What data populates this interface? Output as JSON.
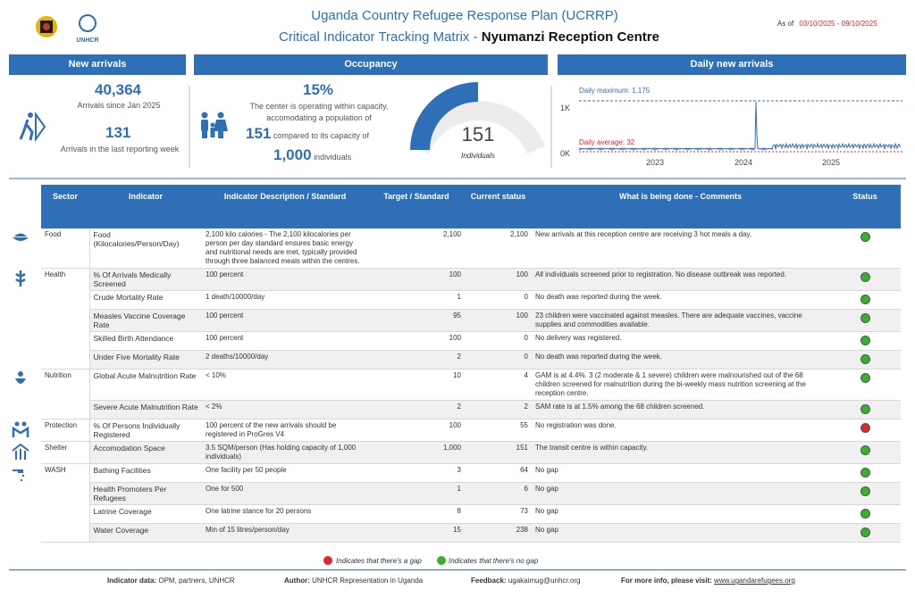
{
  "header": {
    "title_line1": "Uganda Country Refugee Response Plan (UCRRP)",
    "title_line2_prefix": "Critical Indicator Tracking Matrix - ",
    "site_name": "Nyumanzi Reception Centre",
    "as_of_label": "As of",
    "date_range": "03/10/2025 - 09/10/2025",
    "logo_text": "UNHCR"
  },
  "panels": {
    "new_arrivals": {
      "title": "New arrivals",
      "total": "40,364",
      "total_label": "Arrivals since Jan 2025",
      "recent": "131",
      "recent_label": "Arrivals in the last reporting week"
    },
    "occupancy": {
      "title": "Occupancy",
      "percent": "15%",
      "text": "The center is operating within capacity, accomodating a population of",
      "current": "151",
      "compared": "compared to its capacity of",
      "capacity": "1,000",
      "individuals": "individuals",
      "gauge_value": "151",
      "gauge_label": "Individuals"
    },
    "daily": {
      "title": "Daily new arrivals",
      "max_label": "Daily maximum: 1,175",
      "avg_label": "Daily average: 32",
      "y_top": "1K",
      "y_bottom": "0K",
      "years": [
        "2023",
        "2024",
        "2025"
      ]
    }
  },
  "table": {
    "columns": [
      "Sector",
      "Indicator",
      "Indicator Description / Standard",
      "Target / Standard",
      "Current status",
      "What is being done - Comments",
      "Status"
    ],
    "rows": [
      {
        "sector": "Food",
        "indicator": "Food (Kilocalories/Person/Day)",
        "description": "2,100 kilo calories - The 2,100 kilocalories per person per day standard ensures basic energy and nutritional needs are met, typically provided through three balanced meals within the centres.",
        "target": "2,100",
        "current": "2,100",
        "comment": "New arrivals at this reception centre are receiving 3 hot meals a day.",
        "status": "#36b12c"
      },
      {
        "sector": "Health",
        "indicator": "% Of Arrivals Medically Screened",
        "description": "100 percent",
        "target": "100",
        "current": "100",
        "comment": "All individuals screened prior to registration. No disease outbreak was reported.",
        "status": "#36b12c"
      },
      {
        "indicator": "Crude Mortality Rate",
        "description": "1 death/10000/day",
        "target": "1",
        "current": "0",
        "comment": "No death was reported during the week.",
        "status": "#36b12c"
      },
      {
        "indicator": "Measles Vaccine Coverage Rate",
        "description": "100 percent",
        "target": "95",
        "current": "100",
        "comment": "23 children were vaccinated against measles. There are adequate vaccines, vaccine supplies and commodities available.",
        "status": "#36b12c"
      },
      {
        "indicator": "Skilled Birth Attendance",
        "description": "100 percent",
        "target": "100",
        "current": "0",
        "comment": "No delivery was registered.",
        "status": "#36b12c"
      },
      {
        "indicator": "Under Five Mortality Rate",
        "description": "2 deaths/10000/day",
        "target": "2",
        "current": "0",
        "comment": "No death was reported during the week.",
        "status": "#36b12c"
      },
      {
        "sector": "Nutrition",
        "indicator": "Global Acute Malnutrition Rate",
        "description": "< 10%",
        "target": "10",
        "current": "4",
        "comment": "GAM is at 4.4%. 3 (2 moderate & 1 severe) children were malnourished out of the 68 children screened for malnutrition during the bi-weekly mass nutrition screening at the reception centre.",
        "status": "#36b12c"
      },
      {
        "indicator": "Severe Acute Malnutrition Rate",
        "description": "< 2%",
        "target": "2",
        "current": "2",
        "comment": "SAM rate is at 1.5% among the 68 children screened.",
        "status": "#36b12c"
      },
      {
        "sector": "Protection",
        "indicator": "% Of Persons Individually Registered",
        "description": "100 percent of the new arrivals should be registered in ProGres V4",
        "target": "100",
        "current": "55",
        "comment": "No registration was done.",
        "status": "#e0252b"
      },
      {
        "sector": "Shelter",
        "indicator": "Accomodation Space",
        "description": "3.5 SQM/person (Has holding capacity of 1,000 individuals)",
        "target": "1,000",
        "current": "151",
        "comment": "The transit centre is within capacity.",
        "status": "#36b12c"
      },
      {
        "sector": "WASH",
        "indicator": "Bathing Facilities",
        "description": "One facility per 50 people",
        "target": "3",
        "current": "64",
        "comment": "No gap",
        "status": "#36b12c"
      },
      {
        "indicator": "Health Promoters Per Refugees",
        "description": "One for 500",
        "target": "1",
        "current": "6",
        "comment": "No gap",
        "status": "#36b12c"
      },
      {
        "indicator": "Latrine Coverage",
        "description": "One latrine stance for 20 persons",
        "target": "8",
        "current": "73",
        "comment": "No gap",
        "status": "#36b12c"
      },
      {
        "indicator": "Water Coverage",
        "description": "Min of 15 litres/person/day",
        "target": "15",
        "current": "238",
        "comment": "No gap",
        "status": "#36b12c"
      }
    ]
  },
  "legend": {
    "gap": "Indicates that there's a gap",
    "no_gap": "Indicates that there's no gap",
    "gap_color": "#e0252b",
    "no_gap_color": "#36b12c"
  },
  "footer": {
    "data_label": "Indicator data:",
    "data_value": "OPM, partners, UNHCR",
    "author_label": "Author:",
    "author_value": "UNHCR Representation in Uganda",
    "feedback_label": "Feedback:",
    "feedback_value": "ugakaimug@unhcr.org",
    "info_label": "For more info, please visit:",
    "info_value": "www.ugandarefugees.org"
  }
}
